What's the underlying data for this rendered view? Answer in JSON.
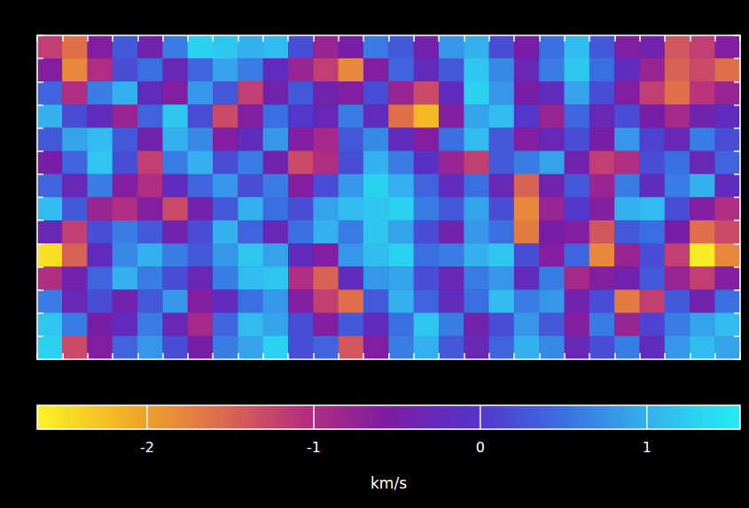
{
  "chart_data": {
    "type": "heatmap",
    "cells": [
      [
        -1.2,
        -1.6,
        -0.6,
        0.3,
        -0.4,
        0.6,
        1.3,
        1.2,
        1.0,
        1.1,
        0.2,
        -0.8,
        -0.5,
        0.6,
        0.3,
        -0.4,
        0.8,
        1.0,
        0.2,
        -0.5,
        0.5,
        1.1,
        0.3,
        -0.6,
        -0.4,
        -1.4,
        -1.2,
        -0.6
      ],
      [
        -0.6,
        -1.8,
        -1.0,
        0.2,
        0.5,
        -0.3,
        0.4,
        0.9,
        0.6,
        -0.2,
        -0.8,
        -1.2,
        -1.8,
        -0.6,
        0.4,
        -0.2,
        0.3,
        1.2,
        0.7,
        -0.3,
        0.6,
        1.2,
        0.5,
        -0.2,
        -0.8,
        -1.5,
        -1.3,
        -1.6
      ],
      [
        0.4,
        -1.0,
        0.6,
        1.0,
        -0.2,
        -0.6,
        0.8,
        0.3,
        -1.2,
        -0.4,
        0.3,
        -0.4,
        -0.6,
        0.2,
        -0.8,
        -1.3,
        -0.2,
        1.3,
        0.8,
        -0.5,
        -0.2,
        0.9,
        0.2,
        -0.6,
        -1.2,
        -1.6,
        -1.1,
        -0.8
      ],
      [
        1.0,
        0.2,
        -0.2,
        -0.8,
        0.4,
        1.2,
        0.2,
        -1.3,
        -0.6,
        0.5,
        0.0,
        -0.3,
        0.6,
        -0.2,
        -1.6,
        -2.2,
        -0.6,
        0.9,
        1.1,
        0.0,
        -0.8,
        0.4,
        -0.3,
        0.2,
        -0.5,
        -0.9,
        -0.4,
        -0.2
      ],
      [
        0.3,
        0.9,
        1.1,
        0.3,
        -0.4,
        1.0,
        0.7,
        -0.6,
        -0.2,
        0.8,
        -0.6,
        -0.9,
        0.3,
        0.7,
        -0.2,
        -0.6,
        0.5,
        1.1,
        0.3,
        -0.6,
        -0.3,
        0.2,
        -0.5,
        0.8,
        0.1,
        -0.3,
        0.6,
        0.2
      ],
      [
        -0.5,
        0.4,
        1.2,
        0.2,
        -1.2,
        0.6,
        1.0,
        0.2,
        0.6,
        -0.4,
        -1.3,
        -1.0,
        0.2,
        1.0,
        0.6,
        -0.1,
        -0.8,
        -1.2,
        0.3,
        0.6,
        0.9,
        -0.4,
        -1.2,
        -1.0,
        0.2,
        0.5,
        -0.3,
        0.4
      ],
      [
        0.4,
        -0.3,
        0.6,
        -0.6,
        -1.0,
        -0.2,
        0.4,
        0.8,
        0.2,
        0.6,
        -0.6,
        0.2,
        0.8,
        1.3,
        1.0,
        0.4,
        -0.2,
        0.5,
        -0.3,
        -1.5,
        -0.4,
        0.3,
        -0.8,
        0.6,
        -0.2,
        0.6,
        1.0,
        -0.2
      ],
      [
        1.1,
        0.3,
        -0.8,
        -1.0,
        -0.6,
        -1.3,
        -0.4,
        0.3,
        1.0,
        0.5,
        0.2,
        0.9,
        1.1,
        1.2,
        1.3,
        0.6,
        0.3,
        0.9,
        0.2,
        -1.8,
        -0.8,
        0.0,
        -0.6,
        1.0,
        1.1,
        0.2,
        -0.6,
        -1.0
      ],
      [
        -0.3,
        -1.2,
        0.2,
        0.6,
        0.3,
        -0.4,
        0.2,
        1.0,
        0.4,
        -0.3,
        0.5,
        1.0,
        0.6,
        1.2,
        0.9,
        0.2,
        -0.4,
        0.8,
        0.5,
        -1.7,
        -0.5,
        -0.6,
        -1.4,
        0.3,
        0.5,
        -0.5,
        -1.6,
        -1.3
      ],
      [
        -2.5,
        -1.5,
        -0.2,
        0.7,
        1.0,
        0.6,
        0.3,
        0.8,
        1.2,
        0.9,
        -0.2,
        -0.6,
        0.8,
        1.1,
        1.3,
        0.5,
        0.6,
        1.0,
        1.2,
        0.2,
        -0.6,
        0.4,
        -1.8,
        -0.8,
        0.2,
        -1.2,
        -2.6,
        -1.8
      ],
      [
        -1.0,
        -0.4,
        0.4,
        1.0,
        0.6,
        0.2,
        -0.3,
        0.6,
        1.1,
        1.2,
        -1.0,
        -1.5,
        -0.2,
        0.8,
        0.9,
        0.2,
        -0.3,
        0.6,
        0.8,
        -0.2,
        0.6,
        -0.9,
        -0.6,
        -0.4,
        0.3,
        -0.8,
        -1.2,
        -0.6
      ],
      [
        0.6,
        -0.3,
        0.2,
        -0.4,
        0.3,
        0.8,
        -0.6,
        -0.2,
        0.5,
        0.8,
        -0.6,
        -1.2,
        -1.6,
        0.3,
        1.0,
        0.4,
        -0.2,
        0.5,
        1.1,
        0.6,
        0.8,
        -0.4,
        0.2,
        -1.7,
        -1.2,
        0.3,
        -0.4,
        0.5
      ],
      [
        1.2,
        0.6,
        -0.5,
        -0.2,
        0.6,
        -0.3,
        -0.9,
        0.4,
        1.1,
        0.9,
        0.2,
        -0.6,
        0.3,
        -0.2,
        0.5,
        1.2,
        0.6,
        -0.4,
        0.2,
        0.8,
        0.3,
        -0.6,
        0.6,
        -0.8,
        0.1,
        0.6,
        0.9,
        1.1
      ],
      [
        1.3,
        -1.3,
        -0.6,
        0.4,
        0.8,
        0.2,
        -0.5,
        0.6,
        0.9,
        1.3,
        0.2,
        0.4,
        -1.4,
        -0.6,
        0.6,
        1.0,
        0.3,
        -0.3,
        0.4,
        1.0,
        0.7,
        -0.3,
        0.2,
        0.6,
        -0.2,
        0.8,
        1.1,
        0.9
      ]
    ],
    "colorbar": {
      "range": [
        -2.66,
        1.56
      ],
      "ticks": [
        -2,
        -1,
        0,
        1
      ],
      "label": "km/s"
    }
  }
}
